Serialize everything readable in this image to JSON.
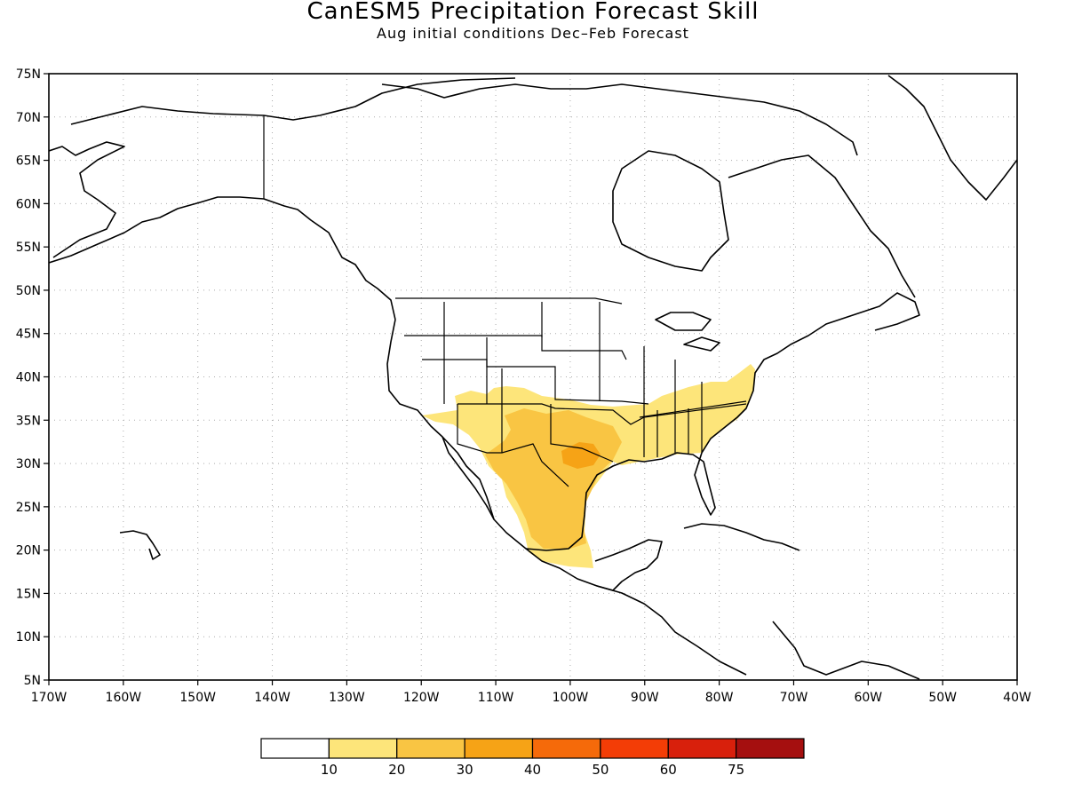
{
  "title": "CanESM5 Precipitation Forecast Skill",
  "subtitle": "Aug initial conditions  Dec–Feb Forecast",
  "map": {
    "lon_range": [
      -170,
      -40
    ],
    "lat_range": [
      5,
      75
    ],
    "lon_ticks": [
      "170W",
      "160W",
      "150W",
      "140W",
      "130W",
      "120W",
      "110W",
      "100W",
      "90W",
      "80W",
      "70W",
      "60W",
      "50W",
      "40W"
    ],
    "lat_ticks": [
      "5N",
      "10N",
      "15N",
      "20N",
      "25N",
      "30N",
      "35N",
      "40N",
      "45N",
      "50N",
      "55N",
      "60N",
      "65N",
      "70N",
      "75N"
    ],
    "grid": "dotted",
    "projection": "lat-lon"
  },
  "colorbar": {
    "levels": [
      "10",
      "20",
      "30",
      "40",
      "50",
      "60",
      "75"
    ],
    "colors": [
      "#ffffff",
      "#fde57a",
      "#f9c543",
      "#f6a316",
      "#f56a0a",
      "#f33d06",
      "#d8200c",
      "#a50f0f"
    ]
  },
  "skill_regions": [
    {
      "level": "10-20",
      "color": "#fde57a",
      "area": "southern United States and northern Mexico"
    },
    {
      "level": "20-30",
      "color": "#f9c543",
      "area": "Texas and central Mexico"
    },
    {
      "level": "30-40",
      "color": "#f6a316",
      "area": "central Texas"
    }
  ]
}
